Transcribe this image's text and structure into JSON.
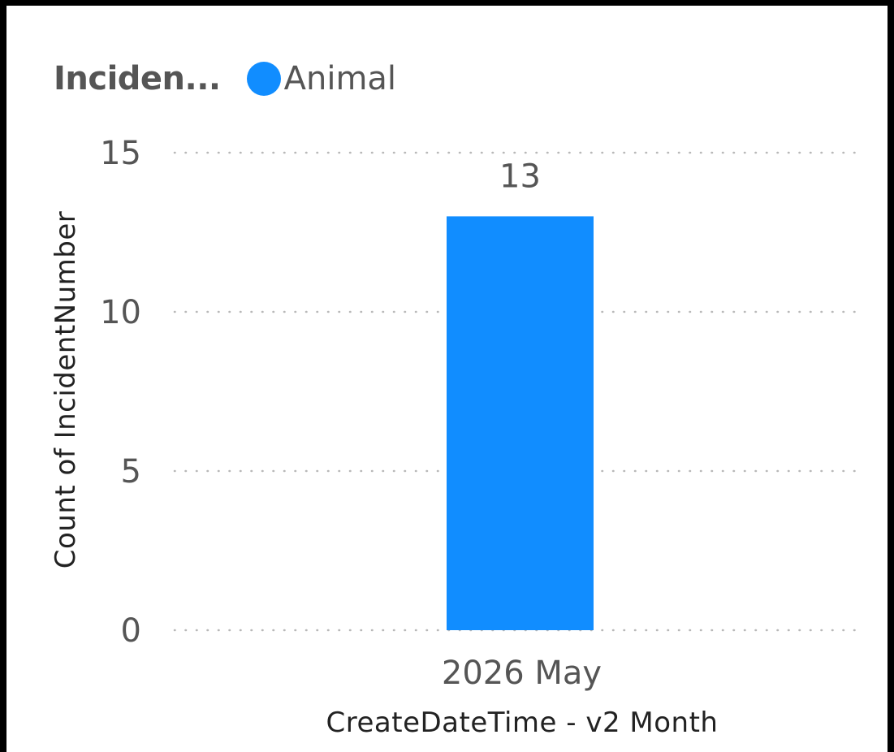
{
  "legend": {
    "title": "Inciden...",
    "items": [
      {
        "label": "Animal",
        "color": "#118DFF"
      }
    ]
  },
  "chart_data": {
    "type": "bar",
    "categories": [
      "2026 May"
    ],
    "series": [
      {
        "name": "Animal",
        "values": [
          13
        ],
        "color": "#118DFF"
      }
    ],
    "data_labels": [
      "13"
    ],
    "xlabel": "CreateDateTime - v2 Month",
    "ylabel": "Count of IncidentNumber",
    "ylim": [
      0,
      15
    ],
    "yticks": [
      0,
      5,
      10,
      15
    ],
    "grid": true,
    "grid_style": "dotted",
    "legend_position": "top-left"
  }
}
